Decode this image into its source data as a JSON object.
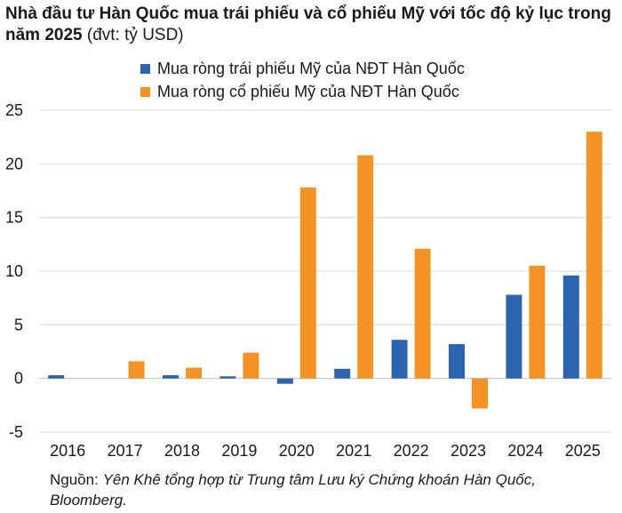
{
  "title": {
    "main": "Nhà đầu tư Hàn Quốc mua trái phiếu và cổ phiếu Mỹ với tốc độ kỷ lục trong năm 2025",
    "unit": "(đvt: tỷ USD)"
  },
  "source": {
    "label": "Nguồn:",
    "text": "Yên Khê tổng hợp từ Trung tâm Lưu ký Chứng khoán Hàn Quốc, Bloomberg."
  },
  "colors": {
    "bonds": "#2e64ad",
    "stocks": "#f39325",
    "grid": "#d9d9d9",
    "axis": "#bfbfbf"
  },
  "chart_data": {
    "type": "bar",
    "categories": [
      "2016",
      "2017",
      "2018",
      "2019",
      "2020",
      "2021",
      "2022",
      "2023",
      "2024",
      "2025"
    ],
    "series": [
      {
        "name": "Mua ròng trái phiếu Mỹ của NĐT Hàn Quốc",
        "values": [
          0.3,
          0,
          0.3,
          0.2,
          -0.5,
          0.9,
          3.6,
          3.2,
          7.8,
          9.6
        ]
      },
      {
        "name": "Mua ròng cổ phiếu Mỹ của NĐT Hàn Quốc",
        "values": [
          0,
          1.6,
          1.0,
          2.4,
          17.8,
          20.8,
          12.1,
          -2.8,
          10.5,
          23.0
        ]
      }
    ],
    "yticks": [
      25,
      20,
      15,
      10,
      5,
      0,
      -5
    ],
    "ylim": [
      -5,
      25
    ],
    "grid": true,
    "legend": "top"
  }
}
